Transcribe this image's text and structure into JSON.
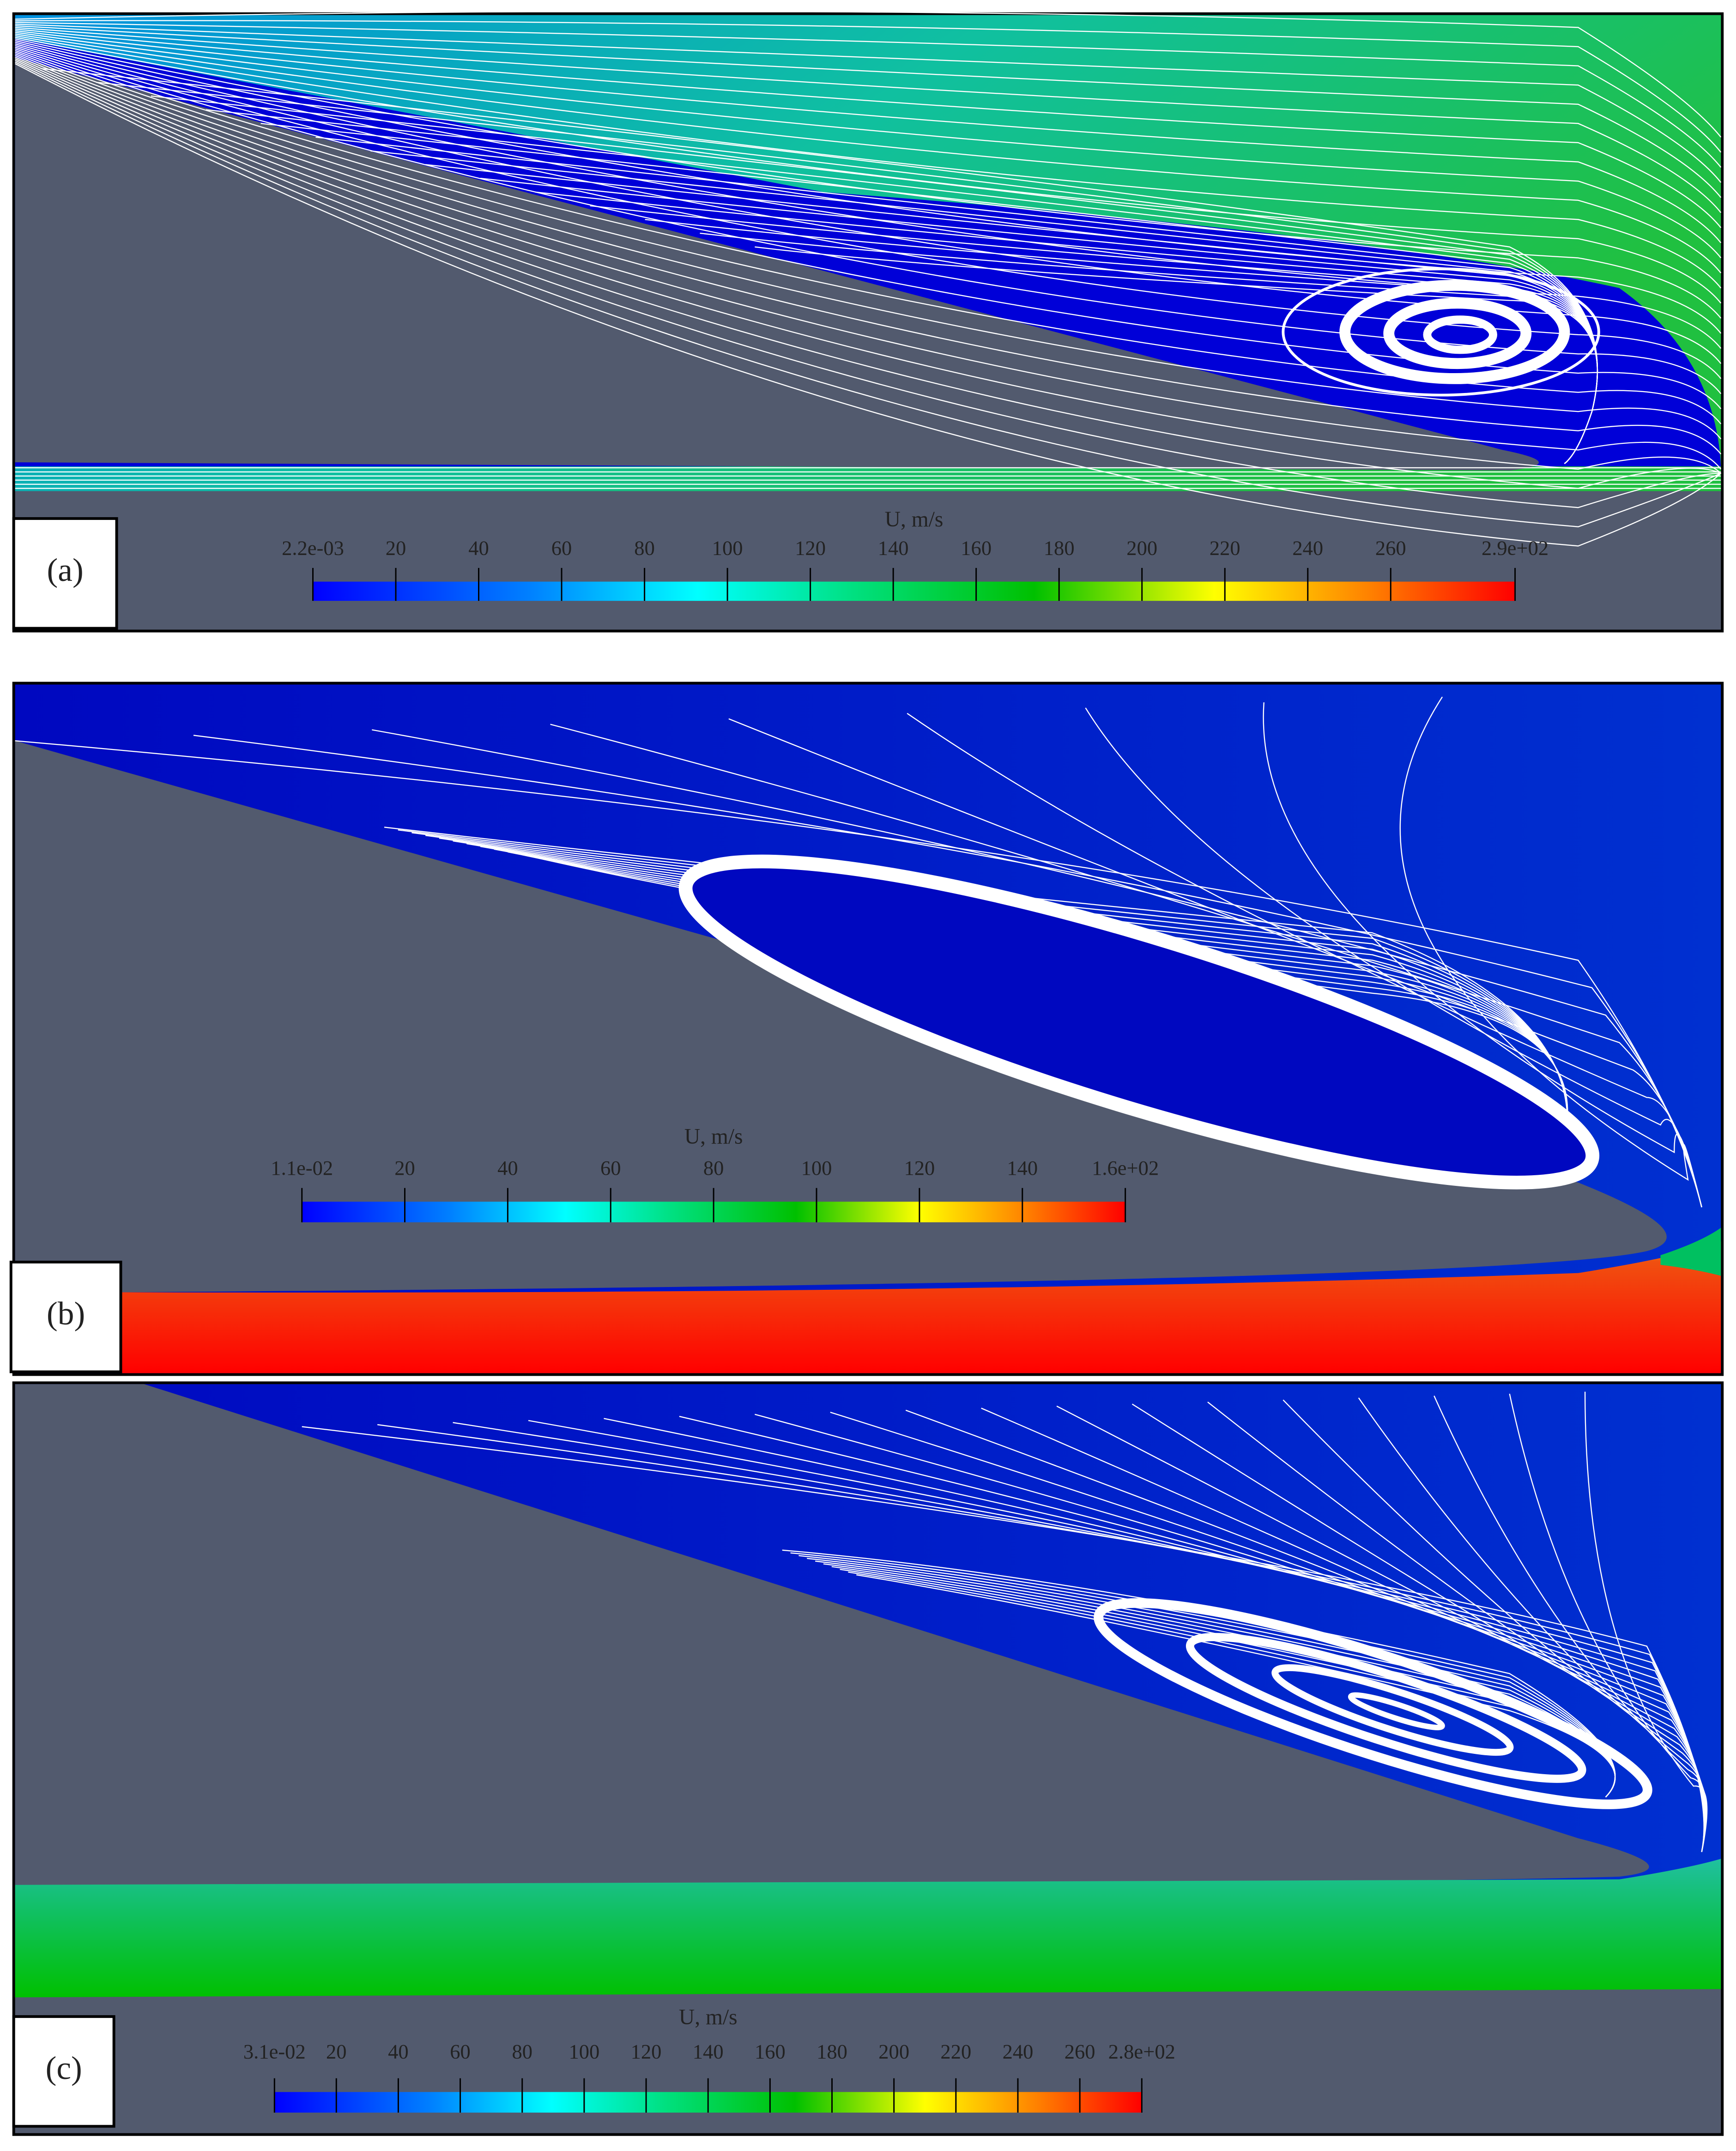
{
  "panels": [
    {
      "label": "(a)",
      "colorbar": {
        "title": "U, m/s",
        "ticks": [
          {
            "value": 0.0022,
            "label": "2.2e-03"
          },
          20,
          40,
          60,
          80,
          100,
          120,
          140,
          160,
          180,
          200,
          220,
          240,
          260,
          {
            "value": 290,
            "label": "2.9e+02"
          }
        ]
      }
    },
    {
      "label": "(b)",
      "colorbar": {
        "title": "U, m/s",
        "ticks": [
          {
            "value": 0.011,
            "label": "1.1e-02"
          },
          20,
          40,
          60,
          80,
          100,
          120,
          140,
          {
            "value": 160,
            "label": "1.6e+02"
          }
        ]
      }
    },
    {
      "label": "(c)",
      "colorbar": {
        "title": "U, m/s",
        "ticks": [
          {
            "value": 0.031,
            "label": "3.1e-02"
          },
          20,
          40,
          60,
          80,
          100,
          120,
          140,
          160,
          180,
          200,
          220,
          240,
          260,
          {
            "value": 280,
            "label": "2.8e+02"
          }
        ]
      }
    }
  ]
}
